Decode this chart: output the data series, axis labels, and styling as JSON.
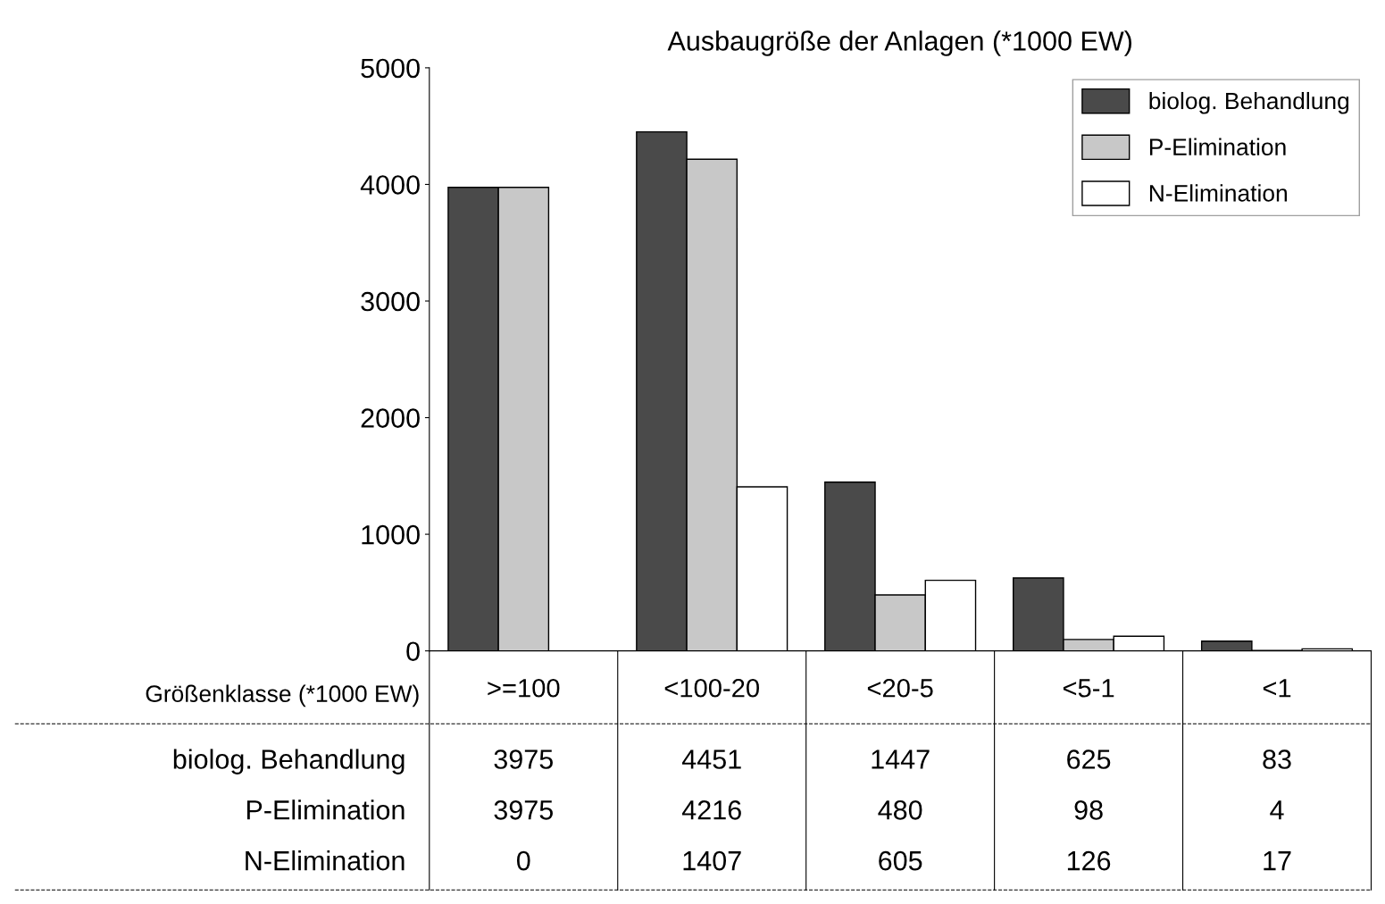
{
  "chart_data": {
    "type": "bar",
    "title": "Ausbaugröße der Anlagen (*1000 EW)",
    "xlabel": "Größenklasse (*1000 EW)",
    "categories": [
      ">=100",
      "<100-20",
      "<20-5",
      "<5-1",
      "<1"
    ],
    "series": [
      {
        "name": "biolog. Behandlung",
        "color": "#4a4a4a",
        "values": [
          3975,
          4451,
          1447,
          625,
          83
        ]
      },
      {
        "name": "P-Elimination",
        "color": "#c8c8c8",
        "values": [
          3975,
          4216,
          480,
          98,
          4
        ]
      },
      {
        "name": "N-Elimination",
        "color": "#ffffff",
        "values": [
          0,
          1407,
          605,
          126,
          17
        ]
      }
    ],
    "ylim": [
      0,
      5000
    ],
    "yticks": [
      0,
      1000,
      2000,
      3000,
      4000,
      5000
    ],
    "grid": false,
    "legend": "top right",
    "data_labels": true
  }
}
